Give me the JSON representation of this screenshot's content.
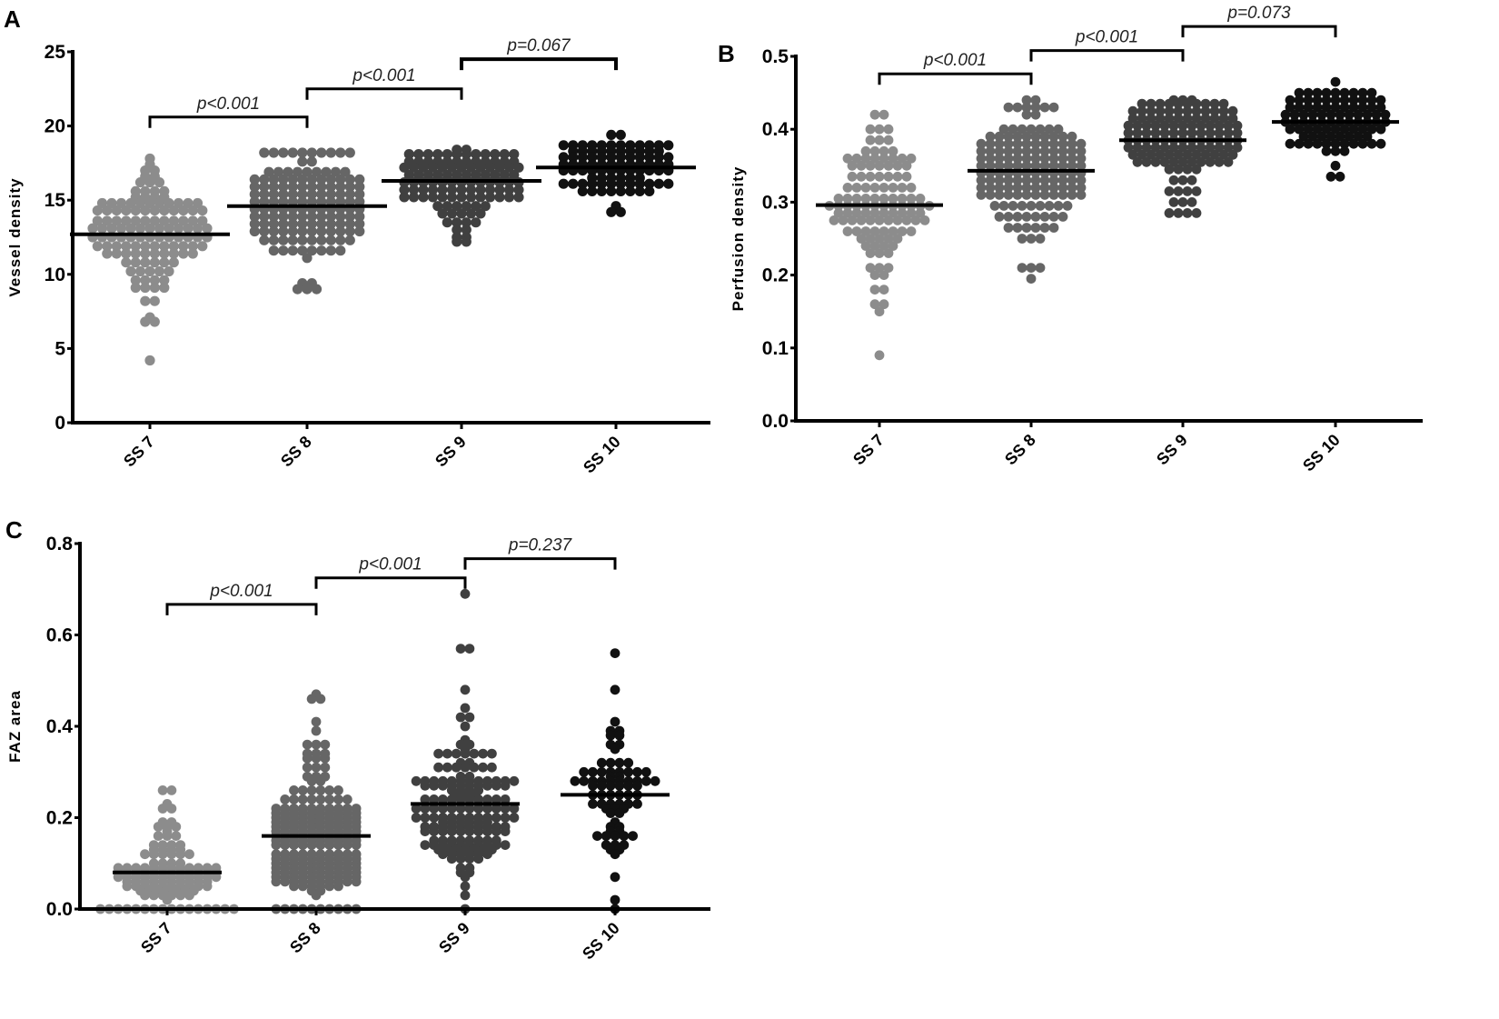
{
  "chart_data": [
    {
      "type": "scatter",
      "subtype": "dot-plot-with-mean",
      "panel": "A",
      "ylabel": "Vessel density",
      "ylim": [
        0,
        25
      ],
      "yticks": [
        "0",
        "5",
        "10",
        "15",
        "20",
        "25"
      ],
      "ytick_values": [
        0,
        5,
        10,
        15,
        20,
        25
      ],
      "categories": [
        "SS 7",
        "SS 8",
        "SS 9",
        "SS 10"
      ],
      "colors": [
        "#8c8c8c",
        "#666666",
        "#404040",
        "#111111"
      ],
      "means": [
        12.7,
        14.6,
        16.3,
        17.2
      ],
      "comparisons": [
        {
          "from": 0,
          "to": 1,
          "label": "p<0.001",
          "level": 20.6
        },
        {
          "from": 1,
          "to": 2,
          "label": "p<0.001",
          "level": 22.5
        },
        {
          "from": 2,
          "to": 3,
          "label": "p=0.067",
          "level": 24.5
        }
      ],
      "groups": [
        [
          [
            17.8,
            1
          ],
          [
            17.4,
            1
          ],
          [
            17,
            2
          ],
          [
            16.6,
            2
          ],
          [
            16.2,
            3
          ],
          [
            15.6,
            4
          ],
          [
            15.2,
            4
          ],
          [
            14.8,
            11
          ],
          [
            14.3,
            12
          ],
          [
            13.6,
            12
          ],
          [
            13.1,
            13
          ],
          [
            12.5,
            13
          ],
          [
            11.9,
            12
          ],
          [
            11.4,
            10
          ],
          [
            10.8,
            6
          ],
          [
            10.2,
            5
          ],
          [
            9.6,
            4
          ],
          [
            9.1,
            4
          ],
          [
            8.2,
            2
          ],
          [
            7.1,
            1
          ],
          [
            6.8,
            2
          ],
          [
            4.2,
            1
          ]
        ],
        [
          [
            18.2,
            10
          ],
          [
            17.6,
            2
          ],
          [
            16.9,
            9
          ],
          [
            16.4,
            12
          ],
          [
            15.9,
            12
          ],
          [
            15.4,
            12
          ],
          [
            14.9,
            12
          ],
          [
            14.4,
            12
          ],
          [
            13.9,
            12
          ],
          [
            13.4,
            12
          ],
          [
            12.9,
            12
          ],
          [
            12.3,
            10
          ],
          [
            11.6,
            8
          ],
          [
            11.1,
            1
          ],
          [
            9.4,
            2
          ],
          [
            9.0,
            3
          ]
        ],
        [
          [
            18.4,
            2
          ],
          [
            18.1,
            12
          ],
          [
            17.6,
            12
          ],
          [
            17.2,
            13
          ],
          [
            16.7,
            12
          ],
          [
            16.2,
            13
          ],
          [
            15.7,
            13
          ],
          [
            15.2,
            13
          ],
          [
            14.6,
            6
          ],
          [
            14.1,
            5
          ],
          [
            13.5,
            4
          ],
          [
            13,
            2
          ],
          [
            12.5,
            2
          ],
          [
            12.2,
            2
          ]
        ],
        [
          [
            19.4,
            2
          ],
          [
            18.7,
            12
          ],
          [
            18.3,
            10
          ],
          [
            17.9,
            12
          ],
          [
            17.4,
            12
          ],
          [
            17.0,
            12
          ],
          [
            16.5,
            6
          ],
          [
            16.1,
            12
          ],
          [
            15.6,
            8
          ],
          [
            14.6,
            1
          ],
          [
            14.2,
            2
          ]
        ]
      ]
    },
    {
      "type": "scatter",
      "subtype": "dot-plot-with-mean",
      "panel": "B",
      "ylabel": "Perfusion density",
      "ylim": [
        0,
        0.5
      ],
      "yticks": [
        "0.0",
        "0.1",
        "0.2",
        "0.3",
        "0.4",
        "0.5"
      ],
      "ytick_values": [
        0,
        0.1,
        0.2,
        0.3,
        0.4,
        0.5
      ],
      "categories": [
        "SS 7",
        "SS 8",
        "SS 9",
        "SS 10"
      ],
      "colors": [
        "#8c8c8c",
        "#666666",
        "#404040",
        "#111111"
      ],
      "means": [
        0.296,
        0.343,
        0.385,
        0.41
      ],
      "comparisons": [
        {
          "from": 0,
          "to": 1,
          "label": "p<0.001",
          "level": 0.476
        },
        {
          "from": 1,
          "to": 2,
          "label": "p<0.001",
          "level": 0.508
        },
        {
          "from": 2,
          "to": 3,
          "label": "p=0.073",
          "level": 0.541
        }
      ],
      "groups": [
        [
          [
            0.42,
            2
          ],
          [
            0.4,
            3
          ],
          [
            0.385,
            3
          ],
          [
            0.37,
            4
          ],
          [
            0.36,
            8
          ],
          [
            0.35,
            7
          ],
          [
            0.335,
            7
          ],
          [
            0.32,
            8
          ],
          [
            0.305,
            10
          ],
          [
            0.295,
            12
          ],
          [
            0.285,
            10
          ],
          [
            0.275,
            11
          ],
          [
            0.26,
            8
          ],
          [
            0.25,
            5
          ],
          [
            0.24,
            4
          ],
          [
            0.23,
            3
          ],
          [
            0.21,
            3
          ],
          [
            0.2,
            2
          ],
          [
            0.18,
            2
          ],
          [
            0.16,
            2
          ],
          [
            0.15,
            1
          ],
          [
            0.09,
            1
          ]
        ],
        [
          [
            0.44,
            2
          ],
          [
            0.43,
            6
          ],
          [
            0.42,
            2
          ],
          [
            0.4,
            7
          ],
          [
            0.39,
            10
          ],
          [
            0.38,
            12
          ],
          [
            0.37,
            12
          ],
          [
            0.36,
            12
          ],
          [
            0.35,
            12
          ],
          [
            0.34,
            12
          ],
          [
            0.33,
            12
          ],
          [
            0.32,
            12
          ],
          [
            0.31,
            12
          ],
          [
            0.295,
            9
          ],
          [
            0.28,
            8
          ],
          [
            0.265,
            6
          ],
          [
            0.25,
            3
          ],
          [
            0.21,
            3
          ],
          [
            0.195,
            1
          ]
        ],
        [
          [
            0.44,
            3
          ],
          [
            0.435,
            10
          ],
          [
            0.425,
            12
          ],
          [
            0.415,
            12
          ],
          [
            0.405,
            13
          ],
          [
            0.395,
            13
          ],
          [
            0.385,
            13
          ],
          [
            0.375,
            13
          ],
          [
            0.365,
            12
          ],
          [
            0.355,
            11
          ],
          [
            0.345,
            4
          ],
          [
            0.33,
            3
          ],
          [
            0.315,
            4
          ],
          [
            0.3,
            3
          ],
          [
            0.285,
            4
          ]
        ],
        [
          [
            0.465,
            1
          ],
          [
            0.45,
            9
          ],
          [
            0.44,
            11
          ],
          [
            0.43,
            11
          ],
          [
            0.42,
            12
          ],
          [
            0.41,
            12
          ],
          [
            0.4,
            11
          ],
          [
            0.39,
            8
          ],
          [
            0.38,
            11
          ],
          [
            0.37,
            3
          ],
          [
            0.35,
            1
          ],
          [
            0.335,
            2
          ]
        ]
      ]
    },
    {
      "type": "scatter",
      "subtype": "dot-plot-with-mean",
      "panel": "C",
      "ylabel": "FAZ area",
      "ylim": [
        0,
        0.8
      ],
      "yticks": [
        "0.0",
        "0.2",
        "0.4",
        "0.6",
        "0.8"
      ],
      "ytick_values": [
        0,
        0.2,
        0.4,
        0.6,
        0.8
      ],
      "categories": [
        "SS 7",
        "SS 8",
        "SS 9",
        "SS 10"
      ],
      "colors": [
        "#8c8c8c",
        "#666666",
        "#404040",
        "#111111"
      ],
      "means": [
        0.08,
        0.16,
        0.23,
        0.25
      ],
      "comparisons": [
        {
          "from": 0,
          "to": 1,
          "label": "p<0.001",
          "level": 0.667
        },
        {
          "from": 1,
          "to": 2,
          "label": "p<0.001",
          "level": 0.725
        },
        {
          "from": 2,
          "to": 3,
          "label": "p=0.237",
          "level": 0.767
        }
      ],
      "groups": [
        [
          [
            0.26,
            2
          ],
          [
            0.23,
            1
          ],
          [
            0.22,
            2
          ],
          [
            0.19,
            2
          ],
          [
            0.18,
            3
          ],
          [
            0.17,
            1
          ],
          [
            0.16,
            3
          ],
          [
            0.14,
            4
          ],
          [
            0.13,
            4
          ],
          [
            0.12,
            6
          ],
          [
            0.1,
            4
          ],
          [
            0.09,
            12
          ],
          [
            0.08,
            12
          ],
          [
            0.07,
            12
          ],
          [
            0.06,
            10
          ],
          [
            0.05,
            10
          ],
          [
            0.04,
            7
          ],
          [
            0.03,
            6
          ],
          [
            0.02,
            1
          ],
          [
            0,
            16
          ]
        ],
        [
          [
            0.47,
            1
          ],
          [
            0.46,
            2
          ],
          [
            0.41,
            1
          ],
          [
            0.39,
            1
          ],
          [
            0.36,
            3
          ],
          [
            0.34,
            3
          ],
          [
            0.33,
            3
          ],
          [
            0.31,
            3
          ],
          [
            0.29,
            3
          ],
          [
            0.28,
            2
          ],
          [
            0.26,
            6
          ],
          [
            0.24,
            8
          ],
          [
            0.22,
            10
          ],
          [
            0.21,
            10
          ],
          [
            0.2,
            10
          ],
          [
            0.19,
            10
          ],
          [
            0.18,
            10
          ],
          [
            0.17,
            10
          ],
          [
            0.16,
            10
          ],
          [
            0.15,
            10
          ],
          [
            0.14,
            10
          ],
          [
            0.12,
            10
          ],
          [
            0.11,
            10
          ],
          [
            0.1,
            10
          ],
          [
            0.09,
            10
          ],
          [
            0.08,
            10
          ],
          [
            0.07,
            10
          ],
          [
            0.06,
            10
          ],
          [
            0.05,
            6
          ],
          [
            0.04,
            2
          ],
          [
            0.03,
            1
          ],
          [
            0,
            10
          ]
        ],
        [
          [
            0.69,
            1
          ],
          [
            0.57,
            2
          ],
          [
            0.48,
            1
          ],
          [
            0.44,
            1
          ],
          [
            0.42,
            2
          ],
          [
            0.4,
            1
          ],
          [
            0.37,
            1
          ],
          [
            0.36,
            2
          ],
          [
            0.35,
            1
          ],
          [
            0.34,
            7
          ],
          [
            0.32,
            2
          ],
          [
            0.31,
            7
          ],
          [
            0.29,
            2
          ],
          [
            0.28,
            12
          ],
          [
            0.27,
            10
          ],
          [
            0.26,
            4
          ],
          [
            0.25,
            3
          ],
          [
            0.24,
            10
          ],
          [
            0.22,
            12
          ],
          [
            0.2,
            12
          ],
          [
            0.19,
            6
          ],
          [
            0.18,
            10
          ],
          [
            0.17,
            10
          ],
          [
            0.15,
            8
          ],
          [
            0.14,
            10
          ],
          [
            0.13,
            7
          ],
          [
            0.12,
            6
          ],
          [
            0.11,
            4
          ],
          [
            0.09,
            2
          ],
          [
            0.08,
            2
          ],
          [
            0.07,
            1
          ],
          [
            0.05,
            1
          ],
          [
            0.03,
            1
          ],
          [
            0,
            1
          ]
        ],
        [
          [
            0.56,
            1
          ],
          [
            0.48,
            1
          ],
          [
            0.41,
            1
          ],
          [
            0.39,
            2
          ],
          [
            0.38,
            2
          ],
          [
            0.36,
            2
          ],
          [
            0.35,
            1
          ],
          [
            0.32,
            4
          ],
          [
            0.3,
            8
          ],
          [
            0.29,
            2
          ],
          [
            0.28,
            10
          ],
          [
            0.27,
            6
          ],
          [
            0.25,
            6
          ],
          [
            0.23,
            6
          ],
          [
            0.22,
            3
          ],
          [
            0.21,
            2
          ],
          [
            0.19,
            1
          ],
          [
            0.18,
            2
          ],
          [
            0.17,
            2
          ],
          [
            0.16,
            5
          ],
          [
            0.14,
            3
          ],
          [
            0.13,
            2
          ],
          [
            0.12,
            1
          ],
          [
            0.07,
            1
          ],
          [
            0.02,
            1
          ],
          [
            0,
            1
          ]
        ]
      ]
    }
  ]
}
